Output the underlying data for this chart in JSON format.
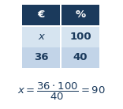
{
  "table": {
    "headers": [
      "€",
      "%"
    ],
    "rows": [
      [
        "x",
        "100"
      ],
      [
        "36",
        "40"
      ]
    ],
    "header_bg": "#1b3a5c",
    "header_fg": "#ffffff",
    "row0_bg": "#d6e4f0",
    "row1_bg": "#c2d4e8",
    "text_color": "#1b3a5c"
  },
  "formula_color": "#1b3a5c",
  "bg_color": "#ffffff",
  "figsize": [
    1.56,
    1.38
  ],
  "dpi": 100
}
